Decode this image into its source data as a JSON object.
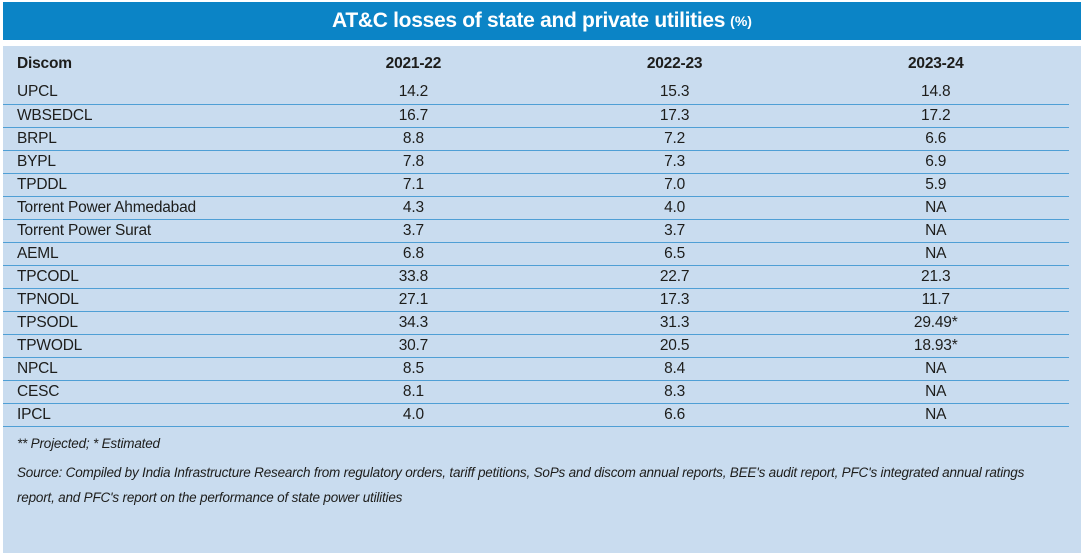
{
  "title": {
    "text": "AT&C losses of state and private utilities",
    "suffix": "(%)"
  },
  "table": {
    "columns": [
      "Discom",
      "2021-22",
      "2022-23",
      "2023-24"
    ],
    "rows": [
      [
        "UPCL",
        "14.2",
        "15.3",
        "14.8"
      ],
      [
        "WBSEDCL",
        "16.7",
        "17.3",
        "17.2"
      ],
      [
        "BRPL",
        "8.8",
        "7.2",
        "6.6"
      ],
      [
        "BYPL",
        "7.8",
        "7.3",
        "6.9"
      ],
      [
        "TPDDL",
        "7.1",
        "7.0",
        "5.9"
      ],
      [
        "Torrent Power Ahmedabad",
        "4.3",
        "4.0",
        "NA"
      ],
      [
        "Torrent Power Surat",
        "3.7",
        "3.7",
        "NA"
      ],
      [
        "AEML",
        "6.8",
        "6.5",
        "NA"
      ],
      [
        "TPCODL",
        "33.8",
        "22.7",
        "21.3"
      ],
      [
        "TPNODL",
        "27.1",
        "17.3",
        "11.7"
      ],
      [
        "TPSODL",
        "34.3",
        "31.3",
        "29.49*"
      ],
      [
        "TPWODL",
        "30.7",
        "20.5",
        "18.93*"
      ],
      [
        "NPCL",
        "8.5",
        "8.4",
        "NA"
      ],
      [
        "CESC",
        "8.1",
        "8.3",
        "NA"
      ],
      [
        "IPCL",
        "4.0",
        "6.6",
        "NA"
      ]
    ]
  },
  "footnote": "** Projected; * Estimated",
  "source": "Source: Compiled by India Infrastructure Research from regulatory orders, tariff petitions, SoPs and discom annual reports, BEE's audit report, PFC's integrated annual ratings report, and PFC's report on the performance of state power utilities",
  "colors": {
    "title_bar": "#0b84c6",
    "panel": "#c9dcef",
    "separator": "#4f9fd5",
    "text": "#1d1d1b",
    "title_text": "#ffffff"
  },
  "chart_data": {
    "type": "table",
    "title": "AT&C losses of state and private utilities (%)",
    "columns": [
      "Discom",
      "2021-22",
      "2022-23",
      "2023-24"
    ],
    "categories": [
      "UPCL",
      "WBSEDCL",
      "BRPL",
      "BYPL",
      "TPDDL",
      "Torrent Power Ahmedabad",
      "Torrent Power Surat",
      "AEML",
      "TPCODL",
      "TPNODL",
      "TPSODL",
      "TPWODL",
      "NPCL",
      "CESC",
      "IPCL"
    ],
    "series": [
      {
        "name": "2021-22",
        "values": [
          14.2,
          16.7,
          8.8,
          7.8,
          7.1,
          4.3,
          3.7,
          6.8,
          33.8,
          27.1,
          34.3,
          30.7,
          8.5,
          8.1,
          4.0
        ]
      },
      {
        "name": "2022-23",
        "values": [
          15.3,
          17.3,
          7.2,
          7.3,
          7.0,
          4.0,
          3.7,
          6.5,
          22.7,
          17.3,
          31.3,
          20.5,
          8.4,
          8.3,
          6.6
        ]
      },
      {
        "name": "2023-24",
        "values": [
          14.8,
          17.2,
          6.6,
          6.9,
          5.9,
          "NA",
          "NA",
          "NA",
          21.3,
          11.7,
          "29.49*",
          "18.93*",
          "NA",
          "NA",
          "NA"
        ]
      }
    ],
    "annotations": [
      "** Projected; * Estimated"
    ]
  }
}
